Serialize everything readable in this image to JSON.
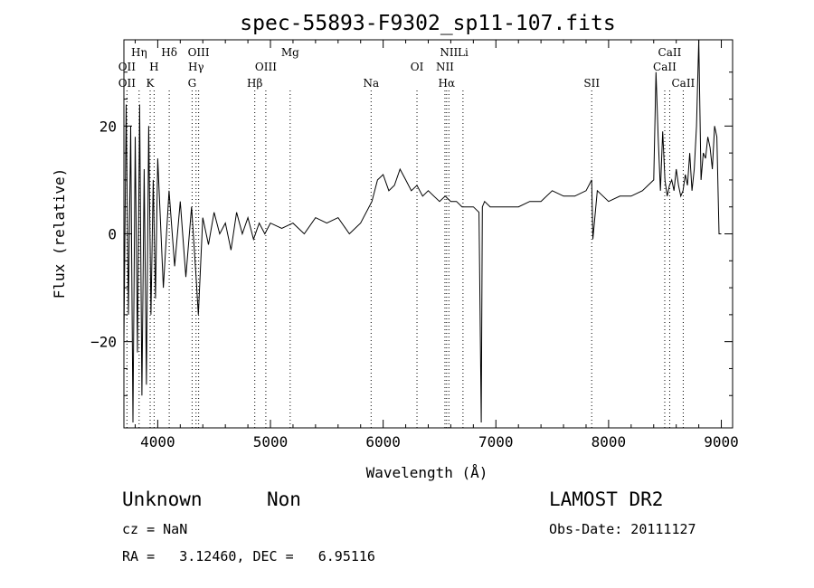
{
  "chart_data": {
    "type": "line",
    "title": "spec-55893-F9302_sp11-107.fits",
    "xlabel": "Wavelength (Å)",
    "ylabel": "Flux (relative)",
    "xlim": [
      3700,
      9100
    ],
    "ylim": [
      -36,
      36
    ],
    "xticks": [
      4000,
      5000,
      6000,
      7000,
      8000,
      9000
    ],
    "yticks": [
      -20,
      0,
      20
    ],
    "grid": false,
    "series": [
      {
        "x": [
          3700,
          3720,
          3740,
          3760,
          3780,
          3800,
          3820,
          3840,
          3860,
          3880,
          3900,
          3920,
          3940,
          3960,
          3980,
          4000,
          4050,
          4100,
          4150,
          4200,
          4250,
          4300,
          4340,
          4360,
          4400,
          4450,
          4500,
          4550,
          4600,
          4650,
          4700,
          4750,
          4800,
          4850,
          4900,
          4950,
          5000,
          5100,
          5200,
          5300,
          5400,
          5500,
          5600,
          5700,
          5800,
          5900,
          5950,
          6000,
          6050,
          6100,
          6150,
          6200,
          6250,
          6300,
          6350,
          6400,
          6450,
          6500,
          6550,
          6600,
          6650,
          6700,
          6750,
          6800,
          6850,
          6870,
          6880,
          6900,
          6950,
          7000,
          7100,
          7200,
          7300,
          7400,
          7500,
          7600,
          7700,
          7800,
          7850,
          7860,
          7900,
          7950,
          8000,
          8100,
          8200,
          8300,
          8350,
          8400,
          8420,
          8440,
          8460,
          8480,
          8500,
          8520,
          8540,
          8560,
          8580,
          8600,
          8620,
          8640,
          8660,
          8680,
          8700,
          8720,
          8740,
          8760,
          8780,
          8800,
          8820,
          8840,
          8860,
          8880,
          8900,
          8920,
          8940,
          8960,
          8980,
          9000
        ],
        "y": [
          -20,
          24,
          -15,
          20,
          -35,
          18,
          -22,
          24,
          -30,
          12,
          -28,
          20,
          -15,
          10,
          -12,
          14,
          -10,
          8,
          -6,
          6,
          -8,
          5,
          -8,
          -15,
          3,
          -2,
          4,
          0,
          2,
          -3,
          4,
          0,
          3,
          -1,
          2,
          0,
          2,
          1,
          2,
          0,
          3,
          2,
          3,
          0,
          2,
          6,
          10,
          11,
          8,
          9,
          12,
          10,
          8,
          9,
          7,
          8,
          7,
          6,
          7,
          6,
          6,
          5,
          5,
          5,
          4,
          -35,
          5,
          6,
          5,
          5,
          5,
          5,
          6,
          6,
          8,
          7,
          7,
          8,
          10,
          -1,
          8,
          7,
          6,
          7,
          7,
          8,
          9,
          10,
          30,
          18,
          8,
          19,
          10,
          7,
          9,
          10,
          8,
          12,
          9,
          7,
          8,
          11,
          9,
          15,
          8,
          12,
          20,
          36,
          10,
          15,
          14,
          18,
          16,
          12,
          20,
          18,
          0,
          0
        ]
      }
    ],
    "lines_top": [
      {
        "label": "Hη",
        "x": 3835
      },
      {
        "label": "Hδ",
        "x": 4102
      },
      {
        "label": "OIII",
        "x": 4363
      },
      {
        "label": "Mg",
        "x": 5175
      },
      {
        "label": "NII",
        "x": 6583
      },
      {
        "label": "Li",
        "x": 6708
      },
      {
        "label": "CaII",
        "x": 8542
      }
    ],
    "lines_mid": [
      {
        "label": "OII",
        "x": 3727
      },
      {
        "label": "H",
        "x": 3968
      },
      {
        "label": "Hγ",
        "x": 4340
      },
      {
        "label": "OIII",
        "x": 4959
      },
      {
        "label": "OI",
        "x": 6300
      },
      {
        "label": "NII",
        "x": 6548
      },
      {
        "label": "CaII",
        "x": 8498
      }
    ],
    "lines_bot": [
      {
        "label": "OII",
        "x": 3727
      },
      {
        "label": "K",
        "x": 3933
      },
      {
        "label": "G",
        "x": 4305
      },
      {
        "label": "Hβ",
        "x": 4861
      },
      {
        "label": "Na",
        "x": 5893
      },
      {
        "label": "Hα",
        "x": 6563
      },
      {
        "label": "SII",
        "x": 7850
      },
      {
        "label": "CaII",
        "x": 8662
      }
    ]
  },
  "info": {
    "class": "Unknown",
    "subclass": "Non",
    "survey": "LAMOST DR2",
    "cz": "cz = NaN",
    "obsdate": "Obs-Date: 20111127",
    "coords": "RA =   3.12460, DEC =   6.95116"
  }
}
